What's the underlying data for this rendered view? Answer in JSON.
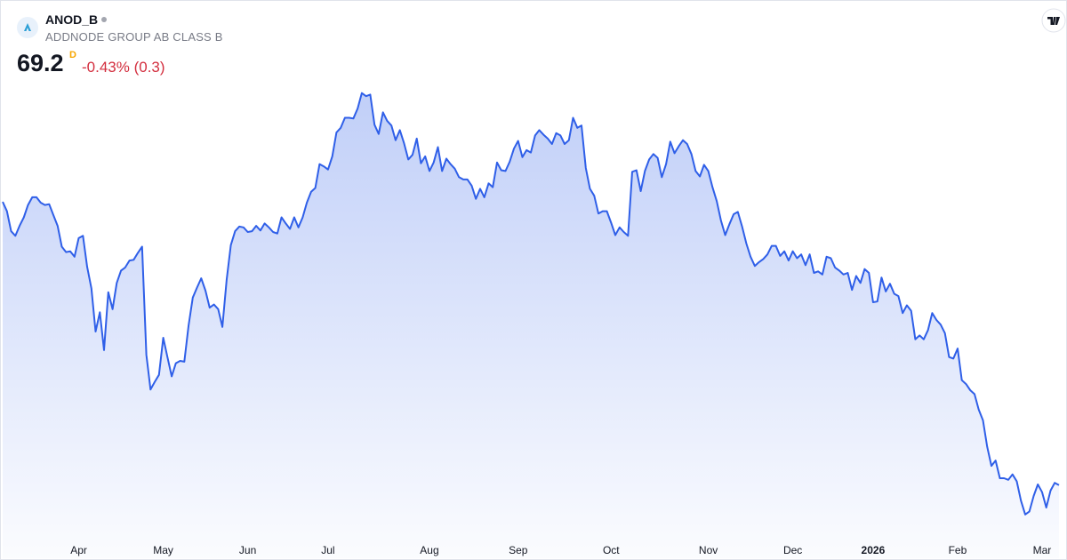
{
  "header": {
    "symbol": "ANOD_B",
    "name": "ADDNODE GROUP AB CLASS B",
    "price": "69.2",
    "interval": "D",
    "change": "-0.43% (0.3)"
  },
  "chart_data": {
    "type": "area",
    "color": "#2f5fe8",
    "values": [
      105.9,
      104.7,
      102.1,
      101.5,
      102.8,
      103.9,
      105.5,
      106.5,
      106.5,
      105.8,
      105.5,
      105.6,
      104.2,
      102.8,
      100.1,
      99.4,
      99.5,
      98.8,
      101.2,
      101.5,
      97.5,
      94.7,
      89.1,
      91.6,
      86.7,
      94.2,
      92.0,
      95.4,
      97.0,
      97.4,
      98.3,
      98.4,
      99.3,
      100.1,
      86.1,
      81.6,
      82.6,
      83.5,
      88.3,
      85.8,
      83.3,
      85.0,
      85.3,
      85.2,
      89.9,
      93.5,
      94.8,
      96.0,
      94.4,
      92.2,
      92.6,
      92.0,
      89.7,
      95.8,
      100.3,
      102.1,
      102.7,
      102.6,
      102.0,
      102.1,
      102.8,
      102.2,
      103.1,
      102.6,
      102.0,
      101.8,
      103.9,
      103.1,
      102.4,
      103.9,
      102.6,
      103.9,
      105.8,
      107.2,
      107.7,
      110.8,
      110.5,
      110.1,
      111.8,
      114.9,
      115.5,
      116.8,
      116.8,
      116.7,
      118.0,
      120.0,
      119.6,
      119.8,
      115.9,
      114.7,
      117.5,
      116.4,
      115.8,
      113.9,
      115.2,
      113.5,
      111.4,
      112.0,
      114.1,
      110.9,
      111.8,
      109.9,
      111.0,
      113.0,
      109.9,
      111.5,
      110.8,
      110.2,
      109.1,
      108.8,
      108.8,
      108.0,
      106.3,
      107.6,
      106.5,
      108.3,
      107.8,
      111.0,
      110.0,
      109.9,
      111.1,
      112.8,
      113.8,
      111.7,
      112.6,
      112.3,
      114.5,
      115.2,
      114.6,
      114.1,
      113.4,
      114.8,
      114.5,
      113.4,
      113.9,
      116.8,
      115.5,
      115.8,
      110.3,
      107.6,
      106.7,
      104.4,
      104.7,
      104.7,
      103.2,
      101.6,
      102.6,
      102.0,
      101.5,
      109.8,
      110.0,
      107.3,
      109.9,
      111.4,
      112.1,
      111.6,
      109.1,
      110.8,
      113.7,
      112.2,
      113.1,
      113.9,
      113.4,
      112.1,
      109.9,
      109.2,
      110.7,
      109.9,
      107.8,
      106.0,
      103.5,
      101.6,
      103.0,
      104.3,
      104.6,
      102.7,
      100.5,
      98.8,
      97.6,
      98.1,
      98.5,
      99.1,
      100.2,
      100.2,
      98.9,
      99.5,
      98.3,
      99.5,
      98.6,
      99.1,
      97.7,
      99.1,
      96.7,
      96.9,
      96.5,
      98.8,
      98.6,
      97.4,
      97.0,
      96.5,
      96.7,
      94.5,
      96.3,
      95.4,
      97.2,
      96.7,
      92.9,
      93.0,
      96.1,
      94.3,
      95.3,
      94.0,
      93.7,
      91.5,
      92.5,
      91.8,
      88.1,
      88.6,
      88.1,
      89.3,
      91.5,
      90.6,
      90.0,
      88.9,
      85.8,
      85.6,
      86.9,
      82.8,
      82.3,
      81.5,
      81.0,
      79.0,
      77.6,
      74.2,
      71.7,
      72.4,
      70.1,
      70.1,
      69.9,
      70.6,
      69.7,
      67.2,
      65.4,
      65.8,
      67.8,
      69.3,
      68.3,
      66.3,
      68.5,
      69.5,
      69.2
    ],
    "xlim": [
      0,
      250
    ],
    "ylim": [
      64,
      121
    ],
    "xticks": [
      {
        "value": 18,
        "label": "Apr"
      },
      {
        "value": 38,
        "label": "May"
      },
      {
        "value": 58,
        "label": "Jun"
      },
      {
        "value": 77,
        "label": "Jul"
      },
      {
        "value": 101,
        "label": "Aug"
      },
      {
        "value": 122,
        "label": "Sep"
      },
      {
        "value": 144,
        "label": "Oct"
      },
      {
        "value": 167,
        "label": "Nov"
      },
      {
        "value": 187,
        "label": "Dec"
      },
      {
        "value": 206,
        "label": "2026"
      },
      {
        "value": 226,
        "label": "Feb"
      },
      {
        "value": 246,
        "label": "Mar"
      }
    ]
  }
}
